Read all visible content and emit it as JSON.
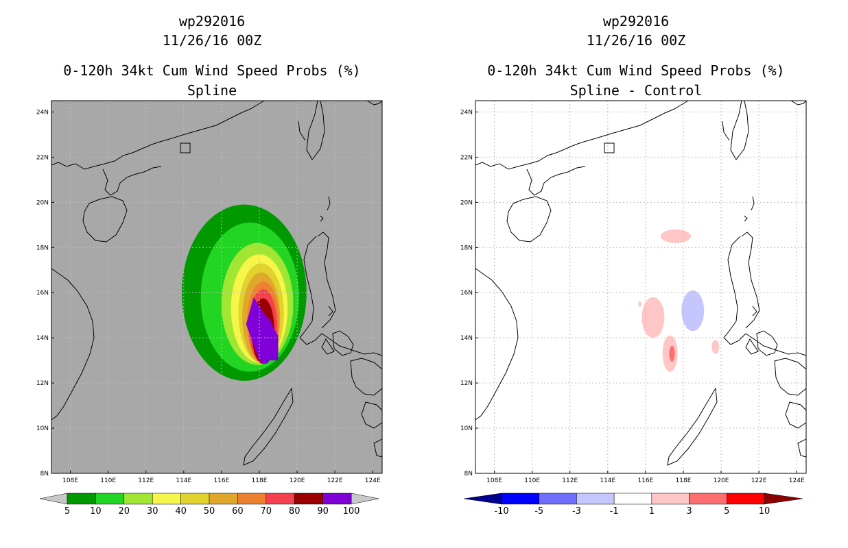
{
  "chart_data": [
    {
      "type": "heatmap",
      "subtype": "filled-contour map",
      "title_lines": [
        "wp292016",
        "11/26/16 00Z",
        "0-120h 34kt Cum Wind Speed Probs (%)",
        "Spline"
      ],
      "xlim": [
        107,
        124.5
      ],
      "ylim": [
        8,
        24.5
      ],
      "x_ticks": [
        108,
        110,
        112,
        114,
        116,
        118,
        120,
        122,
        124
      ],
      "x_tick_labels": [
        "108E",
        "110E",
        "112E",
        "114E",
        "116E",
        "118E",
        "120E",
        "122E",
        "124E"
      ],
      "y_ticks": [
        8,
        10,
        12,
        14,
        16,
        18,
        20,
        22,
        24
      ],
      "y_tick_labels": [
        "8N",
        "10N",
        "12N",
        "14N",
        "16N",
        "18N",
        "20N",
        "22N",
        "24N"
      ],
      "background": "#a8a8a8",
      "grid": true,
      "colorbar": {
        "labels": [
          "5",
          "10",
          "20",
          "30",
          "40",
          "50",
          "60",
          "70",
          "80",
          "90",
          "100"
        ],
        "colors": [
          "#009a00",
          "#22d522",
          "#a0e632",
          "#f5f54a",
          "#e2d22e",
          "#dfa82a",
          "#ee8130",
          "#f4414d",
          "#9a0000",
          "#8000d8"
        ],
        "end_low": "#c8c8c8",
        "end_high": "#c8c8c8"
      },
      "levels": [
        {
          "value": 5,
          "lon": 117.2,
          "lat": 16.0,
          "rx": 3.3,
          "ry": 3.9
        },
        {
          "value": 10,
          "lon": 117.5,
          "lat": 15.8,
          "rx": 2.6,
          "ry": 3.3
        },
        {
          "value": 20,
          "lon": 117.9,
          "lat": 15.5,
          "rx": 1.9,
          "ry": 2.7
        },
        {
          "value": 30,
          "lon": 118.0,
          "lat": 15.3,
          "rx": 1.5,
          "ry": 2.4
        },
        {
          "value": 40,
          "lon": 118.1,
          "lat": 15.1,
          "rx": 1.2,
          "ry": 2.2
        },
        {
          "value": 50,
          "lon": 118.1,
          "lat": 14.9,
          "rx": 1.0,
          "ry": 2.0
        },
        {
          "value": 60,
          "lon": 118.2,
          "lat": 14.7,
          "rx": 0.85,
          "ry": 1.8
        },
        {
          "value": 70,
          "lon": 118.2,
          "lat": 14.5,
          "rx": 0.75,
          "ry": 1.65
        },
        {
          "value": 80,
          "lon": 118.2,
          "lat": 14.3,
          "rx": 0.6,
          "ry": 1.45
        },
        {
          "value": 90,
          "lon": 118.3,
          "lat": 13.9,
          "rx": 0.5,
          "ry": 1.05
        }
      ]
    },
    {
      "type": "heatmap",
      "subtype": "filled-contour map",
      "title_lines": [
        "wp292016",
        "11/26/16 00Z",
        "0-120h 34kt Cum Wind Speed Probs (%)",
        "Spline - Control"
      ],
      "xlim": [
        107,
        124.5
      ],
      "ylim": [
        8,
        24.5
      ],
      "x_ticks": [
        108,
        110,
        112,
        114,
        116,
        118,
        120,
        122,
        124
      ],
      "x_tick_labels": [
        "108E",
        "110E",
        "112E",
        "114E",
        "116E",
        "118E",
        "120E",
        "122E",
        "124E"
      ],
      "y_ticks": [
        8,
        10,
        12,
        14,
        16,
        18,
        20,
        22,
        24
      ],
      "y_tick_labels": [
        "8N",
        "10N",
        "12N",
        "14N",
        "16N",
        "18N",
        "20N",
        "22N",
        "24N"
      ],
      "background": "#ffffff",
      "grid": true,
      "colorbar": {
        "labels": [
          "-10",
          "-5",
          "-3",
          "-1",
          "1",
          "3",
          "5",
          "10"
        ],
        "colors": [
          "#0000ff",
          "#6e6eff",
          "#c6c6ff",
          "#ffffff",
          "#ffc6c6",
          "#ff6e6e",
          "#ff0000"
        ],
        "end_low": "#00008c",
        "end_high": "#8c0000"
      },
      "patches": [
        {
          "value": 2,
          "lon": 117.6,
          "lat": 18.5,
          "rx": 0.8,
          "ry": 0.3
        },
        {
          "value": 2,
          "lon": 116.4,
          "lat": 14.9,
          "rx": 0.6,
          "ry": 0.9
        },
        {
          "value": 2,
          "lon": 117.3,
          "lat": 13.3,
          "rx": 0.4,
          "ry": 0.8
        },
        {
          "value": 2,
          "lon": 119.7,
          "lat": 13.6,
          "rx": 0.2,
          "ry": 0.3
        },
        {
          "value": 2,
          "lon": 115.7,
          "lat": 15.5,
          "rx": 0.08,
          "ry": 0.12
        },
        {
          "value": 4,
          "lon": 117.4,
          "lat": 13.3,
          "rx": 0.15,
          "ry": 0.35
        },
        {
          "value": -2,
          "lon": 118.5,
          "lat": 15.2,
          "rx": 0.6,
          "ry": 0.9
        }
      ]
    }
  ]
}
